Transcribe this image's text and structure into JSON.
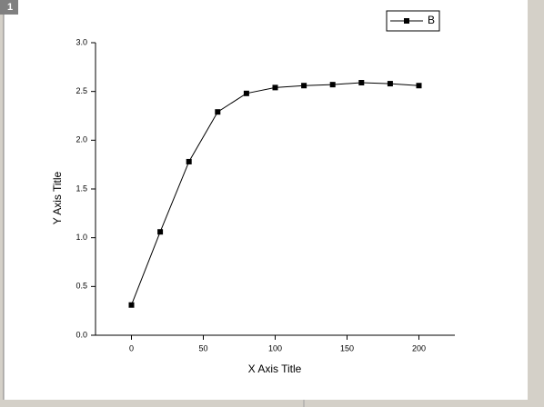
{
  "window": {
    "label": "1"
  },
  "chart_data": {
    "type": "line",
    "x_label": "X Axis Title",
    "y_label": "Y Axis Title",
    "x": [
      0,
      20,
      40,
      60,
      80,
      100,
      120,
      140,
      160,
      180,
      200
    ],
    "series": [
      {
        "name": "B",
        "color": "#000000",
        "values": [
          0.31,
          1.06,
          1.78,
          2.29,
          2.48,
          2.54,
          2.56,
          2.57,
          2.59,
          2.58,
          2.56
        ]
      }
    ],
    "xlim": [
      -25,
      225
    ],
    "xticks": [
      0,
      50,
      100,
      150,
      200
    ],
    "ylim": [
      0,
      3
    ],
    "yticks": [
      {
        "value": 0,
        "label": "0.0"
      },
      {
        "value": 0.5,
        "label": "0.5"
      },
      {
        "value": 1,
        "label": "1.0"
      },
      {
        "value": 1.5,
        "label": "1.5"
      },
      {
        "value": 2,
        "label": "2.0"
      },
      {
        "value": 2.5,
        "label": "2.5"
      },
      {
        "value": 3,
        "label": "3.0"
      }
    ],
    "legend": "top-right"
  }
}
